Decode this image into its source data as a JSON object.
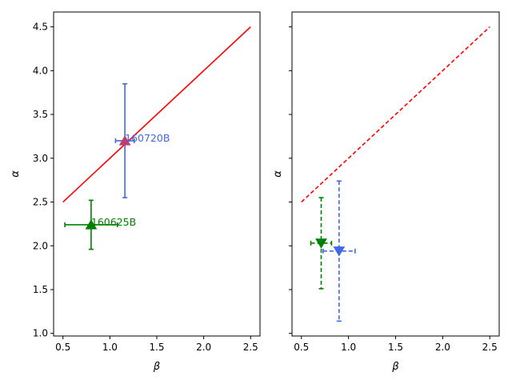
{
  "chart_data": [
    {
      "type": "scatter",
      "panel": "left",
      "xlabel": "β",
      "ylabel": "α",
      "xlim": [
        0.4,
        2.6
      ],
      "ylim": [
        0.97,
        4.67
      ],
      "xticks": [
        0.5,
        1.0,
        1.5,
        2.0,
        2.5
      ],
      "yticks": [
        1.0,
        1.5,
        2.0,
        2.5,
        3.0,
        3.5,
        4.0,
        4.5
      ],
      "xtick_labels": [
        "0.5",
        "1.0",
        "1.5",
        "2.0",
        "2.5"
      ],
      "ytick_labels": [
        "1.0",
        "1.5",
        "2.0",
        "2.5",
        "3.0",
        "3.5",
        "4.0",
        "4.5"
      ],
      "line": {
        "x": [
          0.5,
          2.5
        ],
        "y": [
          2.5,
          4.5
        ],
        "style": "solid",
        "color": "#ff0000"
      },
      "points": [
        {
          "label": "160720B",
          "x": 1.16,
          "y": 3.2,
          "xerr": 0.1,
          "yerr_low": 0.65,
          "yerr_high": 0.65,
          "marker": "triangle-up",
          "color": "#4169e1",
          "marker_color": "#c03c6e",
          "line_style": "solid"
        },
        {
          "label": "160625B",
          "x": 0.8,
          "y": 2.24,
          "xerr": 0.28,
          "yerr_low": 0.28,
          "yerr_high": 0.28,
          "marker": "triangle-up",
          "color": "#008000",
          "marker_color": "#008000",
          "line_style": "solid"
        }
      ],
      "grid": false
    },
    {
      "type": "scatter",
      "panel": "right",
      "xlabel": "β",
      "ylabel": "α",
      "xlim": [
        0.4,
        2.6
      ],
      "ylim": [
        0.97,
        4.67
      ],
      "xticks": [
        0.5,
        1.0,
        1.5,
        2.0,
        2.5
      ],
      "xtick_labels": [
        "0.5",
        "1.0",
        "1.5",
        "2.0",
        "2.5"
      ],
      "line": {
        "x": [
          0.5,
          2.5
        ],
        "y": [
          2.5,
          4.5
        ],
        "style": "dashed",
        "color": "#ff0000"
      },
      "points": [
        {
          "x": 0.9,
          "y": 1.94,
          "xerr": 0.17,
          "yerr_low": 0.8,
          "yerr_high": 0.8,
          "marker": "triangle-down",
          "color": "#4169e1",
          "marker_color": "#4169e1",
          "line_style": "dashed"
        },
        {
          "x": 0.71,
          "y": 2.03,
          "xerr": 0.11,
          "yerr_low": 0.52,
          "yerr_high": 0.52,
          "marker": "triangle-down",
          "color": "#008000",
          "marker_color": "#008000",
          "line_style": "dashed"
        }
      ],
      "grid": false
    }
  ]
}
